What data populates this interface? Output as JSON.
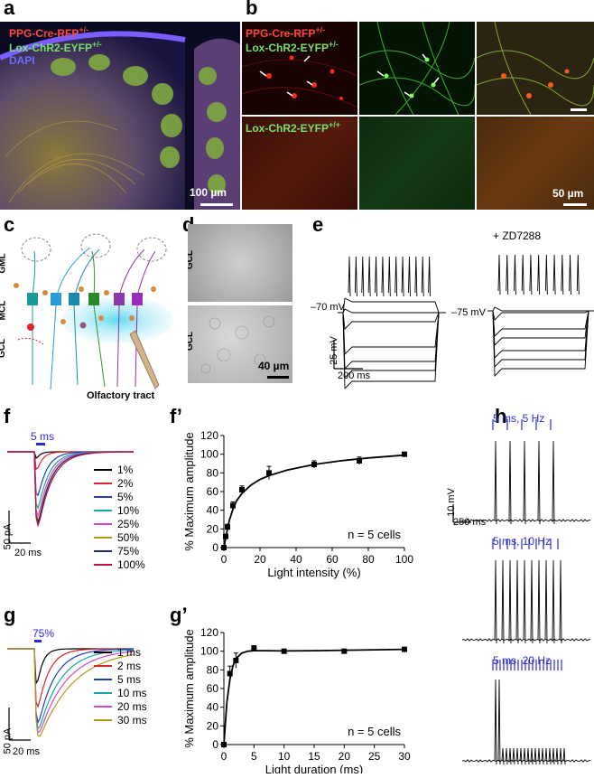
{
  "panel_labels": {
    "a": "a",
    "b": "b",
    "c": "c",
    "d": "d",
    "e": "e",
    "f": "f",
    "f2": "f’",
    "g": "g",
    "g2": "g’",
    "h": "h"
  },
  "a": {
    "line1_prefix": "PPG-Cre-RFP",
    "line1_sup": "+/-",
    "line2_prefix": "Lox-ChR2-EYFP",
    "line2_sup": "+/-",
    "line3": "DAPI",
    "scalebar": "100 µm"
  },
  "b": {
    "line1_prefix": "PPG-Cre-RFP",
    "line1_sup": "+/-",
    "line2_prefix": "Lox-ChR2-EYFP",
    "line2_sup": "+/-",
    "line3_prefix": "Lox-ChR2-EYFP",
    "line3_sup": "+/+",
    "scalebar": "50 µm"
  },
  "c": {
    "gml": "GML",
    "mcl": "MCL",
    "gcl": "GCL",
    "tract": "Olfactory tract"
  },
  "d": {
    "gcl_top": "GCL",
    "gcl_bottom": "GCL",
    "scalebar": "40 µm"
  },
  "e": {
    "v1": "–70 mV",
    "v2": "–75 mV",
    "drug": "+ ZD7288",
    "scale_v": "25 mV",
    "scale_t": "200 ms"
  },
  "f": {
    "stim": "5 ms",
    "scale_a": "50 pA",
    "scale_t": "20 ms",
    "legend": [
      "1%",
      "2%",
      "5%",
      "10%",
      "25%",
      "50%",
      "75%",
      "100%"
    ],
    "colors": [
      "#000000",
      "#d9262f",
      "#1f3fbf",
      "#18a9a6",
      "#d247d2",
      "#b39a1b",
      "#1e2a7a",
      "#c0123c"
    ]
  },
  "g": {
    "stim": "75%",
    "scale_a": "50 pA",
    "scale_t": "20 ms",
    "legend": [
      "1 ms",
      "2 ms",
      "5 ms",
      "10 ms",
      "20 ms",
      "30 ms"
    ],
    "colors": [
      "#000000",
      "#d9262f",
      "#1f3fbf",
      "#18a9a6",
      "#d247d2",
      "#b39a1b"
    ]
  },
  "h": {
    "t1": "5 ms, 5 Hz",
    "t2": "5 ms, 10 Hz",
    "t3": "5 ms, 20 Hz",
    "scale_v": "10 mV",
    "scale_t": "250 ms"
  },
  "chart_data": [
    {
      "type": "scatter",
      "panel": "f’",
      "xlabel": "Light intensity (%)",
      "ylabel": "% Maximum amplitude",
      "xlim": [
        0,
        100
      ],
      "ylim": [
        0,
        120
      ],
      "xticks": [
        0,
        20,
        40,
        60,
        80,
        100
      ],
      "yticks": [
        0,
        20,
        40,
        60,
        80,
        100,
        120
      ],
      "annotation": "n = 5 cells",
      "x": [
        0,
        1,
        2,
        5,
        10,
        25,
        50,
        75,
        100
      ],
      "y": [
        0,
        12,
        22,
        45,
        62,
        80,
        89,
        93,
        100
      ],
      "err": [
        0,
        2,
        3,
        4,
        4,
        7,
        4,
        4,
        1
      ],
      "fit": [
        [
          0,
          0
        ],
        [
          1,
          10
        ],
        [
          2,
          20
        ],
        [
          3,
          29
        ],
        [
          5,
          41
        ],
        [
          7,
          50
        ],
        [
          10,
          58
        ],
        [
          15,
          67
        ],
        [
          20,
          73
        ],
        [
          25,
          77
        ],
        [
          35,
          83
        ],
        [
          50,
          89
        ],
        [
          65,
          93
        ],
        [
          80,
          96
        ],
        [
          100,
          99
        ]
      ]
    },
    {
      "type": "scatter",
      "panel": "g’",
      "xlabel": "Light duration (ms)",
      "ylabel": "% Maximum amplitude",
      "xlim": [
        0,
        30
      ],
      "ylim": [
        0,
        120
      ],
      "xticks": [
        0,
        5,
        10,
        15,
        20,
        25,
        30
      ],
      "yticks": [
        0,
        20,
        40,
        60,
        80,
        100,
        120
      ],
      "annotation": "n = 5 cells",
      "x": [
        0,
        1,
        2,
        5,
        10,
        20,
        30
      ],
      "y": [
        0,
        76,
        90,
        103,
        100,
        100,
        102
      ],
      "err": [
        0,
        8,
        8,
        3,
        2,
        2,
        2
      ],
      "fit": [
        [
          0,
          0
        ],
        [
          0.5,
          45
        ],
        [
          1,
          70
        ],
        [
          1.5,
          84
        ],
        [
          2,
          92
        ],
        [
          3,
          98
        ],
        [
          4,
          100
        ],
        [
          5,
          100.5
        ],
        [
          7,
          100.5
        ],
        [
          10,
          100.3
        ],
        [
          15,
          100.5
        ],
        [
          20,
          101
        ],
        [
          25,
          101.5
        ],
        [
          30,
          102
        ]
      ]
    }
  ]
}
